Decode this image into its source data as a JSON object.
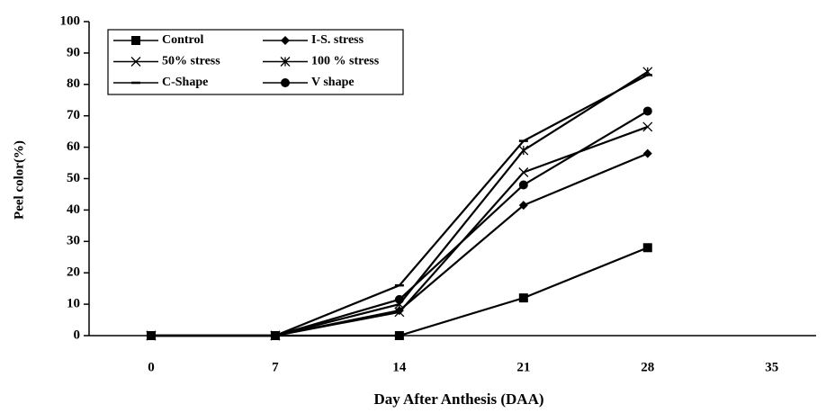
{
  "chart_data": {
    "type": "line",
    "x_label": "Day After Anthesis (DAA)",
    "y_label": "Peel color(%)",
    "x": [
      0,
      7,
      14,
      21,
      28
    ],
    "series": [
      {
        "name": "Control",
        "color": "#000000",
        "marker": "square",
        "values": [
          0,
          0,
          0,
          12,
          28
        ]
      },
      {
        "name": "I-S. stress",
        "color": "#000000",
        "marker": "diamond",
        "values": [
          0,
          0,
          8,
          41.5,
          58
        ]
      },
      {
        "name": "50% stress",
        "color": "#000000",
        "marker": "x",
        "values": [
          0,
          0,
          7.5,
          52,
          66.5
        ]
      },
      {
        "name": "100 % stress",
        "color": "#000000",
        "marker": "asterisk",
        "values": [
          0,
          0,
          10,
          59,
          84
        ]
      },
      {
        "name": "C-Shape",
        "color": "#000000",
        "marker": "dash",
        "values": [
          0,
          0,
          16,
          62,
          83
        ]
      },
      {
        "name": "V shape",
        "color": "#000000",
        "marker": "circle",
        "values": [
          0,
          0,
          11.5,
          48,
          71.5
        ]
      }
    ],
    "xlim": [
      -3.5,
      37.5
    ],
    "xticks": [
      0,
      7,
      14,
      21,
      28,
      35
    ],
    "ylim": [
      0,
      100
    ],
    "yticks": [
      0,
      10,
      20,
      30,
      40,
      50,
      60,
      70,
      80,
      90,
      100
    ],
    "legend": "upper left"
  }
}
